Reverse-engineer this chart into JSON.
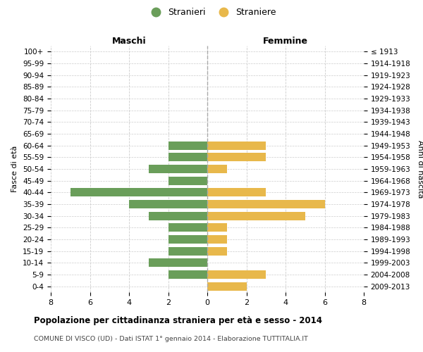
{
  "age_groups": [
    "100+",
    "95-99",
    "90-94",
    "85-89",
    "80-84",
    "75-79",
    "70-74",
    "65-69",
    "60-64",
    "55-59",
    "50-54",
    "45-49",
    "40-44",
    "35-39",
    "30-34",
    "25-29",
    "20-24",
    "15-19",
    "10-14",
    "5-9",
    "0-4"
  ],
  "birth_years": [
    "≤ 1913",
    "1914-1918",
    "1919-1923",
    "1924-1928",
    "1929-1933",
    "1934-1938",
    "1939-1943",
    "1944-1948",
    "1949-1953",
    "1954-1958",
    "1959-1963",
    "1964-1968",
    "1969-1973",
    "1974-1978",
    "1979-1983",
    "1984-1988",
    "1989-1993",
    "1994-1998",
    "1999-2003",
    "2004-2008",
    "2009-2013"
  ],
  "males": [
    0,
    0,
    0,
    0,
    0,
    0,
    0,
    0,
    2,
    2,
    3,
    2,
    7,
    4,
    3,
    2,
    2,
    2,
    3,
    2,
    0
  ],
  "females": [
    0,
    0,
    0,
    0,
    0,
    0,
    0,
    0,
    3,
    3,
    1,
    0,
    3,
    6,
    5,
    1,
    1,
    1,
    0,
    3,
    2
  ],
  "male_color": "#6a9e5a",
  "female_color": "#e8b84b",
  "title": "Popolazione per cittadinanza straniera per età e sesso - 2014",
  "subtitle": "COMUNE DI VISCO (UD) - Dati ISTAT 1° gennaio 2014 - Elaborazione TUTTITALIA.IT",
  "xlabel_left": "Maschi",
  "xlabel_right": "Femmine",
  "ylabel_left": "Fasce di età",
  "ylabel_right": "Anni di nascita",
  "legend_male": "Stranieri",
  "legend_female": "Straniere",
  "xlim": 8,
  "background_color": "#ffffff",
  "grid_color": "#cccccc"
}
